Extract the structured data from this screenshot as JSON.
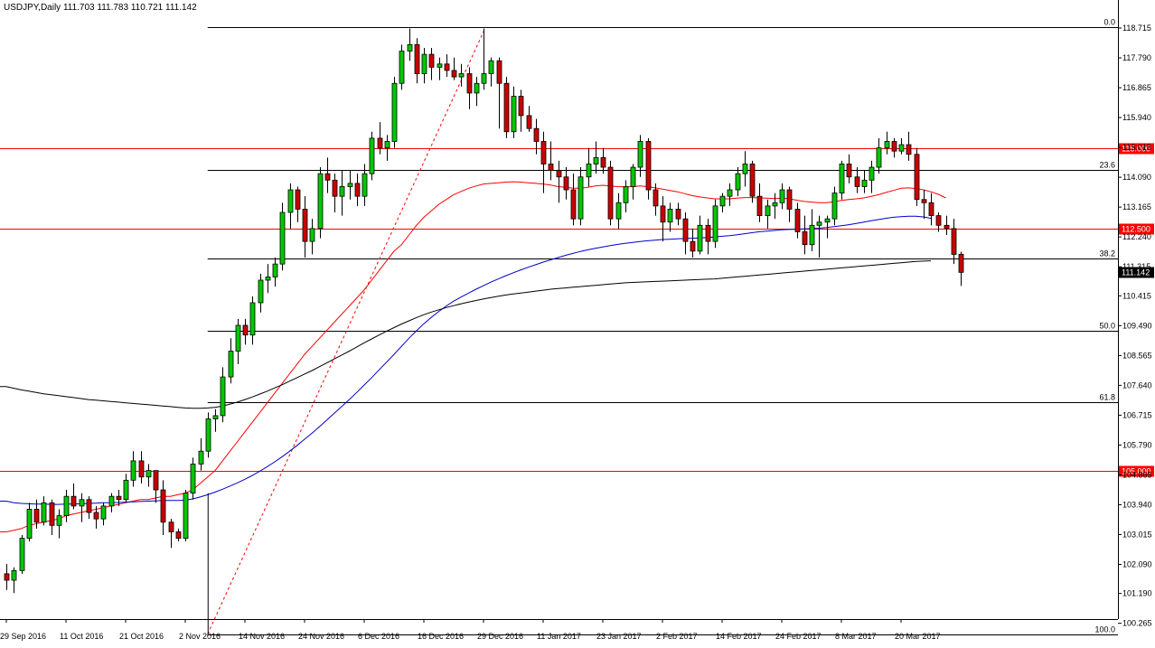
{
  "chart_data": {
    "type": "candlestick",
    "title": "USDJPY,Daily  111.703 111.783 110.721 111.142",
    "ylim": [
      100.265,
      119.2
    ],
    "y_ticks": [
      "118.715",
      "117.790",
      "116.865",
      "115.940",
      "115.015",
      "114.090",
      "113.165",
      "112.240",
      "111.315",
      "110.415",
      "109.490",
      "108.565",
      "107.640",
      "106.715",
      "105.790",
      "104.865",
      "103.940",
      "103.015",
      "102.090",
      "101.190",
      "100.265"
    ],
    "x_tick_labels": [
      {
        "label": "29 Sep 2016",
        "index": 0
      },
      {
        "label": "11 Oct 2016",
        "index": 8
      },
      {
        "label": "21 Oct 2016",
        "index": 16
      },
      {
        "label": "2 Nov 2016",
        "index": 24
      },
      {
        "label": "14 Nov 2016",
        "index": 32
      },
      {
        "label": "24 Nov 2016",
        "index": 40
      },
      {
        "label": "6 Dec 2016",
        "index": 48
      },
      {
        "label": "16 Dec 2016",
        "index": 56
      },
      {
        "label": "29 Dec 2016",
        "index": 64
      },
      {
        "label": "11 Jan 2017",
        "index": 72
      },
      {
        "label": "23 Jan 2017",
        "index": 80
      },
      {
        "label": "2 Feb 2017",
        "index": 88
      },
      {
        "label": "14 Feb 2017",
        "index": 96
      },
      {
        "label": "24 Feb 2017",
        "index": 104
      },
      {
        "label": "8 Mar 2017",
        "index": 112
      },
      {
        "label": "20 Mar 2017",
        "index": 120
      }
    ],
    "ohlc": [
      [
        101.8,
        102.1,
        101.3,
        101.6
      ],
      [
        101.6,
        102.0,
        101.2,
        101.9
      ],
      [
        101.9,
        103.0,
        101.8,
        102.9
      ],
      [
        102.9,
        104.0,
        102.8,
        103.8
      ],
      [
        103.8,
        104.1,
        103.2,
        103.4
      ],
      [
        103.4,
        104.2,
        103.3,
        104.0
      ],
      [
        104.0,
        104.1,
        103.0,
        103.3
      ],
      [
        103.3,
        103.8,
        102.9,
        103.6
      ],
      [
        103.6,
        104.4,
        103.4,
        104.2
      ],
      [
        104.2,
        104.6,
        103.8,
        103.9
      ],
      [
        103.9,
        104.3,
        103.4,
        104.1
      ],
      [
        104.1,
        104.2,
        103.5,
        103.7
      ],
      [
        103.7,
        103.9,
        103.2,
        103.5
      ],
      [
        103.5,
        104.0,
        103.3,
        103.9
      ],
      [
        103.9,
        104.3,
        103.7,
        104.2
      ],
      [
        104.2,
        104.4,
        103.9,
        104.1
      ],
      [
        104.1,
        104.9,
        104.0,
        104.7
      ],
      [
        104.7,
        105.6,
        104.5,
        105.3
      ],
      [
        105.3,
        105.6,
        104.6,
        104.8
      ],
      [
        104.8,
        105.2,
        104.5,
        105.0
      ],
      [
        105.0,
        105.0,
        104.0,
        104.4
      ],
      [
        104.4,
        104.7,
        103.0,
        103.4
      ],
      [
        103.4,
        103.5,
        102.6,
        103.1
      ],
      [
        103.1,
        103.2,
        102.8,
        102.9
      ],
      [
        102.9,
        104.4,
        102.8,
        104.3
      ],
      [
        104.3,
        105.4,
        104.1,
        105.2
      ],
      [
        105.2,
        106.0,
        105.0,
        105.6
      ],
      [
        105.6,
        106.8,
        105.4,
        106.6
      ],
      [
        106.6,
        106.9,
        106.2,
        106.7
      ],
      [
        106.7,
        108.2,
        106.5,
        107.9
      ],
      [
        107.9,
        109.1,
        107.7,
        108.7
      ],
      [
        108.7,
        109.7,
        108.3,
        109.5
      ],
      [
        109.5,
        109.7,
        108.9,
        109.2
      ],
      [
        109.2,
        110.4,
        108.9,
        110.2
      ],
      [
        110.2,
        111.1,
        109.9,
        110.9
      ],
      [
        110.9,
        111.4,
        110.5,
        111.0
      ],
      [
        111.0,
        111.6,
        110.7,
        111.4
      ],
      [
        111.4,
        113.3,
        111.2,
        113.0
      ],
      [
        113.0,
        113.9,
        112.5,
        113.7
      ],
      [
        113.7,
        113.8,
        112.7,
        113.1
      ],
      [
        113.1,
        113.5,
        111.6,
        112.1
      ],
      [
        112.1,
        112.8,
        111.7,
        112.5
      ],
      [
        112.5,
        114.4,
        112.2,
        114.2
      ],
      [
        114.2,
        114.7,
        113.6,
        114.0
      ],
      [
        114.0,
        114.2,
        113.0,
        113.5
      ],
      [
        113.5,
        114.3,
        112.9,
        113.8
      ],
      [
        113.8,
        114.3,
        113.4,
        113.9
      ],
      [
        113.9,
        114.2,
        113.2,
        113.5
      ],
      [
        113.5,
        114.5,
        113.2,
        114.2
      ],
      [
        114.2,
        115.5,
        114.0,
        115.3
      ],
      [
        115.3,
        115.8,
        114.8,
        115.0
      ],
      [
        115.0,
        115.4,
        114.6,
        115.2
      ],
      [
        115.2,
        117.2,
        115.0,
        117.0
      ],
      [
        117.0,
        118.2,
        116.8,
        118.0
      ],
      [
        118.0,
        118.7,
        117.7,
        118.2
      ],
      [
        118.2,
        118.4,
        117.0,
        117.3
      ],
      [
        117.3,
        118.1,
        117.0,
        117.9
      ],
      [
        117.9,
        118.1,
        117.1,
        117.5
      ],
      [
        117.5,
        117.8,
        117.1,
        117.6
      ],
      [
        117.6,
        117.9,
        117.2,
        117.4
      ],
      [
        117.4,
        117.8,
        117.1,
        117.2
      ],
      [
        117.2,
        117.6,
        116.9,
        117.3
      ],
      [
        117.3,
        117.5,
        116.2,
        116.7
      ],
      [
        116.7,
        117.2,
        116.3,
        117.0
      ],
      [
        117.0,
        118.7,
        116.8,
        117.3
      ],
      [
        117.3,
        117.8,
        116.9,
        117.7
      ],
      [
        117.7,
        117.8,
        115.6,
        117.0
      ],
      [
        117.0,
        117.2,
        115.3,
        115.5
      ],
      [
        115.5,
        116.9,
        115.3,
        116.6
      ],
      [
        116.6,
        116.8,
        115.5,
        116.0
      ],
      [
        116.0,
        116.3,
        115.5,
        115.6
      ],
      [
        115.6,
        115.9,
        114.8,
        115.2
      ],
      [
        115.2,
        115.5,
        113.6,
        114.5
      ],
      [
        114.5,
        115.2,
        114.0,
        114.3
      ],
      [
        114.3,
        114.6,
        113.3,
        114.1
      ],
      [
        114.1,
        114.4,
        113.4,
        113.7
      ],
      [
        113.7,
        114.2,
        112.6,
        112.8
      ],
      [
        112.8,
        114.4,
        112.6,
        114.1
      ],
      [
        114.1,
        115.0,
        113.8,
        114.5
      ],
      [
        114.5,
        115.2,
        114.2,
        114.7
      ],
      [
        114.7,
        115.0,
        114.2,
        114.4
      ],
      [
        114.4,
        114.6,
        112.6,
        112.8
      ],
      [
        112.8,
        113.6,
        112.5,
        113.3
      ],
      [
        113.3,
        114.0,
        113.0,
        113.8
      ],
      [
        113.8,
        114.5,
        113.4,
        114.4
      ],
      [
        114.4,
        115.4,
        114.1,
        115.2
      ],
      [
        115.2,
        115.3,
        113.4,
        113.7
      ],
      [
        113.7,
        113.9,
        112.9,
        113.2
      ],
      [
        113.2,
        113.5,
        112.1,
        112.7
      ],
      [
        112.7,
        113.3,
        112.4,
        113.1
      ],
      [
        113.1,
        113.3,
        112.6,
        112.8
      ],
      [
        112.8,
        113.0,
        111.7,
        112.1
      ],
      [
        112.1,
        112.5,
        111.6,
        111.8
      ],
      [
        111.8,
        112.9,
        111.7,
        112.6
      ],
      [
        112.6,
        112.8,
        111.7,
        112.1
      ],
      [
        112.1,
        113.4,
        111.9,
        113.2
      ],
      [
        113.2,
        113.6,
        113.0,
        113.5
      ],
      [
        113.5,
        113.9,
        113.2,
        113.7
      ],
      [
        113.7,
        114.4,
        113.5,
        114.2
      ],
      [
        114.2,
        114.9,
        113.8,
        114.5
      ],
      [
        114.5,
        114.6,
        113.3,
        113.5
      ],
      [
        113.5,
        113.9,
        112.7,
        112.9
      ],
      [
        112.9,
        113.4,
        112.5,
        113.2
      ],
      [
        113.2,
        113.6,
        112.8,
        113.3
      ],
      [
        113.3,
        113.9,
        113.1,
        113.7
      ],
      [
        113.7,
        113.8,
        112.7,
        113.1
      ],
      [
        113.1,
        113.3,
        112.2,
        112.4
      ],
      [
        112.4,
        112.9,
        111.7,
        112.0
      ],
      [
        112.0,
        113.1,
        111.8,
        112.6
      ],
      [
        112.6,
        112.9,
        111.6,
        112.7
      ],
      [
        112.7,
        112.9,
        112.2,
        112.8
      ],
      [
        112.8,
        113.8,
        112.6,
        113.6
      ],
      [
        113.6,
        114.6,
        113.4,
        114.5
      ],
      [
        114.5,
        114.8,
        113.9,
        114.1
      ],
      [
        114.1,
        114.4,
        113.6,
        113.8
      ],
      [
        113.8,
        114.3,
        113.6,
        114.0
      ],
      [
        114.0,
        114.6,
        113.6,
        114.4
      ],
      [
        114.4,
        115.3,
        114.2,
        115.0
      ],
      [
        115.0,
        115.5,
        114.8,
        115.2
      ],
      [
        115.2,
        115.3,
        114.7,
        114.9
      ],
      [
        114.9,
        115.3,
        114.8,
        115.1
      ],
      [
        115.1,
        115.5,
        114.6,
        114.8
      ],
      [
        114.8,
        115.0,
        113.2,
        113.4
      ],
      [
        113.4,
        113.7,
        112.8,
        113.3
      ],
      [
        113.3,
        113.6,
        112.6,
        112.9
      ],
      [
        112.9,
        113.0,
        112.4,
        112.6
      ],
      [
        112.6,
        112.9,
        112.3,
        112.5
      ],
      [
        112.5,
        112.8,
        111.4,
        111.7
      ],
      [
        111.703,
        111.783,
        110.721,
        111.142
      ]
    ],
    "moving_averages": [
      {
        "color": "#ff0000",
        "values": [
          103.1,
          103.15,
          103.2,
          103.3,
          103.35,
          103.4,
          103.45,
          103.5,
          103.6,
          103.65,
          103.7,
          103.75,
          103.8,
          103.85,
          103.9,
          103.95,
          104.0,
          104.05,
          104.1,
          104.1,
          104.15,
          104.2,
          104.2,
          104.25,
          104.3,
          104.4,
          104.6,
          104.8,
          105.0,
          105.3,
          105.6,
          105.9,
          106.2,
          106.5,
          106.8,
          107.1,
          107.4,
          107.7,
          108.0,
          108.3,
          108.6,
          108.85,
          109.1,
          109.35,
          109.6,
          109.85,
          110.1,
          110.35,
          110.6,
          110.9,
          111.2,
          111.5,
          111.8,
          112.0,
          112.3,
          112.6,
          112.85,
          113.05,
          113.25,
          113.4,
          113.55,
          113.65,
          113.75,
          113.82,
          113.88,
          113.9,
          113.92,
          113.94,
          113.95,
          113.94,
          113.92,
          113.9,
          113.88,
          113.85,
          113.8,
          113.78,
          113.75,
          113.75,
          113.78,
          113.82,
          113.84,
          113.82,
          113.8,
          113.79,
          113.8,
          113.82,
          113.8,
          113.76,
          113.72,
          113.68,
          113.64,
          113.58,
          113.52,
          113.48,
          113.45,
          113.42,
          113.42,
          113.42,
          113.44,
          113.46,
          113.46,
          113.45,
          113.44,
          113.43,
          113.44,
          113.42,
          113.38,
          113.34,
          113.32,
          113.3,
          113.3,
          113.33,
          113.37,
          113.4,
          113.42,
          113.45,
          113.5,
          113.55,
          113.62,
          113.68,
          113.75,
          113.76,
          113.74,
          113.7,
          113.64,
          113.56,
          113.45
        ]
      },
      {
        "color": "#0000cc",
        "values": [
          104.05,
          104.0,
          103.98,
          103.97,
          103.96,
          103.96,
          103.95,
          103.95,
          103.96,
          103.96,
          103.97,
          103.98,
          103.99,
          104.0,
          104.0,
          104.01,
          104.02,
          104.03,
          104.04,
          104.05,
          104.06,
          104.07,
          104.07,
          104.07,
          104.08,
          104.12,
          104.18,
          104.25,
          104.33,
          104.42,
          104.52,
          104.62,
          104.73,
          104.85,
          104.98,
          105.12,
          105.27,
          105.43,
          105.6,
          105.78,
          105.97,
          106.16,
          106.36,
          106.57,
          106.78,
          106.99,
          107.2,
          107.42,
          107.65,
          107.88,
          108.12,
          108.36,
          108.6,
          108.85,
          109.1,
          109.33,
          109.55,
          109.75,
          109.93,
          110.1,
          110.25,
          110.38,
          110.5,
          110.62,
          110.73,
          110.84,
          110.94,
          111.04,
          111.13,
          111.22,
          111.3,
          111.38,
          111.46,
          111.53,
          111.6,
          111.67,
          111.73,
          111.79,
          111.84,
          111.89,
          111.93,
          111.97,
          112.01,
          112.04,
          112.07,
          112.1,
          112.12,
          112.14,
          112.16,
          112.17,
          112.18,
          112.19,
          112.2,
          112.21,
          112.22,
          112.24,
          112.26,
          112.28,
          112.31,
          112.34,
          112.37,
          112.4,
          112.42,
          112.44,
          112.46,
          112.47,
          112.48,
          112.49,
          112.5,
          112.51,
          112.53,
          112.56,
          112.59,
          112.62,
          112.66,
          112.7,
          112.74,
          112.78,
          112.82,
          112.85,
          112.87,
          112.88,
          112.88,
          112.86,
          112.82
        ]
      },
      {
        "color": "#000000",
        "values": [
          107.6,
          107.55,
          107.5,
          107.46,
          107.42,
          107.38,
          107.35,
          107.32,
          107.29,
          107.26,
          107.23,
          107.2,
          107.18,
          107.16,
          107.14,
          107.12,
          107.1,
          107.08,
          107.06,
          107.04,
          107.02,
          107.0,
          106.98,
          106.96,
          106.94,
          106.93,
          106.93,
          106.94,
          106.96,
          107.0,
          107.06,
          107.12,
          107.2,
          107.28,
          107.37,
          107.46,
          107.56,
          107.66,
          107.77,
          107.88,
          107.99,
          108.1,
          108.22,
          108.34,
          108.46,
          108.58,
          108.7,
          108.83,
          108.96,
          109.08,
          109.2,
          109.32,
          109.43,
          109.54,
          109.64,
          109.74,
          109.83,
          109.91,
          109.98,
          110.05,
          110.11,
          110.17,
          110.22,
          110.27,
          110.32,
          110.36,
          110.4,
          110.44,
          110.47,
          110.5,
          110.53,
          110.56,
          110.59,
          110.62,
          110.64,
          110.66,
          110.68,
          110.7,
          110.72,
          110.74,
          110.76,
          110.78,
          110.8,
          110.82,
          110.83,
          110.84,
          110.85,
          110.86,
          110.87,
          110.88,
          110.89,
          110.9,
          110.91,
          110.92,
          110.93,
          110.94,
          110.96,
          110.98,
          111.0,
          111.02,
          111.04,
          111.06,
          111.08,
          111.1,
          111.12,
          111.14,
          111.16,
          111.18,
          111.2,
          111.22,
          111.24,
          111.26,
          111.28,
          111.3,
          111.32,
          111.34,
          111.36,
          111.38,
          111.4,
          111.42,
          111.44,
          111.46,
          111.48,
          111.49,
          111.5
        ]
      }
    ],
    "fib_levels": [
      {
        "label": "0.0",
        "price": 118.75
      },
      {
        "label": "23.6",
        "price": 114.31
      },
      {
        "label": "38.2",
        "price": 111.56
      },
      {
        "label": "50.0",
        "price": 109.33
      },
      {
        "label": "61.8",
        "price": 107.11
      },
      {
        "label": "100.0",
        "price": 99.93
      }
    ],
    "horizontal_lines": [
      {
        "label": "115.000",
        "price": 115.0,
        "color": "#ff0000"
      },
      {
        "label": "112.500",
        "price": 112.5,
        "color": "#ff0000"
      },
      {
        "label": "105.000",
        "price": 105.0,
        "color": "#ff0000"
      }
    ],
    "current_price_label": "111.142",
    "colors": {
      "bull": "#00c800",
      "bear": "#cc0000",
      "candle_outline": "#000000"
    }
  }
}
